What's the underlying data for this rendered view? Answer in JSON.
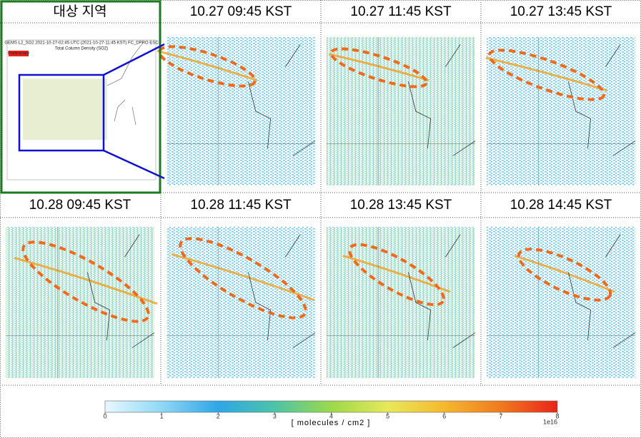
{
  "panels": [
    {
      "title": "대상 지역"
    },
    {
      "title": "10.27  09:45  KST"
    },
    {
      "title": "10.27  11:45  KST"
    },
    {
      "title": "10.27  13:45  KST"
    },
    {
      "title": "10.28  09:45  KST"
    },
    {
      "title": "10.28  11:45  KST"
    },
    {
      "title": "10.28  13:45  KST"
    },
    {
      "title": "10.28  14:45  KST"
    }
  ],
  "inset": {
    "title": "GEMS L2_SO2 2021-10-27-02:45 UTC (2021-10-27-11:45 KST)  FC_DPRO ESC",
    "subtitle": "Total Column Density (SO2)",
    "badge": "Preliminary"
  },
  "colorbar": {
    "lim": [
      0,
      8
    ],
    "ticks": [
      0,
      1,
      2,
      3,
      4,
      5,
      6,
      7,
      8
    ],
    "label": "[ molecules / cm2 ]",
    "exponent": "1e16",
    "colors": [
      "#e8f8ff",
      "#8fd8f5",
      "#2ea6e8",
      "#4cc4a8",
      "#9bd94a",
      "#e8e85a",
      "#f5b82e",
      "#f07a1e",
      "#e8241a"
    ]
  }
}
